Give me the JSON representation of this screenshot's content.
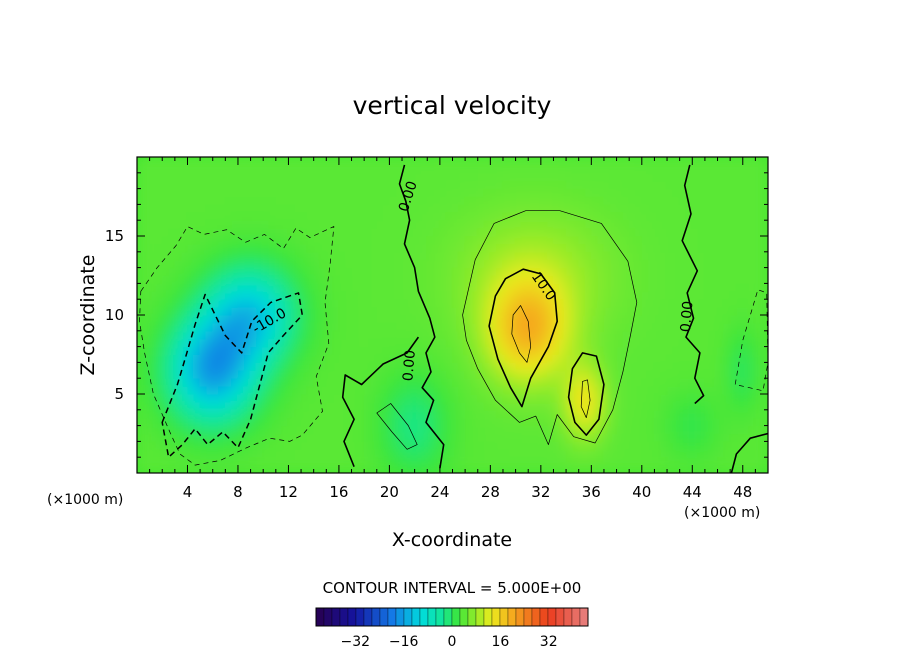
{
  "chart_data": {
    "type": "heatmap",
    "title": "vertical velocity",
    "xlabel": "X-coordinate",
    "ylabel": "Z-coordinate",
    "x_unit_left": "(×1000 m)",
    "x_unit_right": "(×1000 m)",
    "xlim": [
      0,
      50
    ],
    "ylim": [
      0,
      20
    ],
    "x_ticks": [
      4,
      8,
      12,
      16,
      20,
      24,
      28,
      32,
      36,
      40,
      44,
      48
    ],
    "y_ticks": [
      5,
      10,
      15
    ],
    "contour_interval_text": "CONTOUR INTERVAL = 5.000E+00",
    "contour_labels": [
      {
        "text": "0.00",
        "x": 21.5,
        "y": 17.5,
        "angle": -72
      },
      {
        "text": "-10.0",
        "x": 10.5,
        "y": 9.6,
        "angle": -30
      },
      {
        "text": "10.0",
        "x": 32.2,
        "y": 11.8,
        "angle": 55
      },
      {
        "text": "0.00",
        "x": 21.6,
        "y": 6.8,
        "angle": -85
      },
      {
        "text": "0.00",
        "x": 43.6,
        "y": 9.9,
        "angle": -85
      }
    ],
    "colorbar": {
      "ticks": [
        -32,
        -16,
        0,
        16,
        32
      ],
      "tick_labels": [
        "−32",
        "−16",
        "0",
        "16",
        "32"
      ],
      "range": [
        -45,
        45
      ]
    },
    "features": [
      {
        "kind": "updraft",
        "x": 31,
        "z": 9,
        "peak": 18
      },
      {
        "kind": "updraft",
        "x": 35.5,
        "z": 5,
        "peak": 14
      },
      {
        "kind": "downdraft",
        "x": 6,
        "z": 7,
        "peak": -16
      },
      {
        "kind": "downdraft",
        "x": 8.5,
        "z": 9.5,
        "peak": -12
      }
    ],
    "background_value": 4
  }
}
